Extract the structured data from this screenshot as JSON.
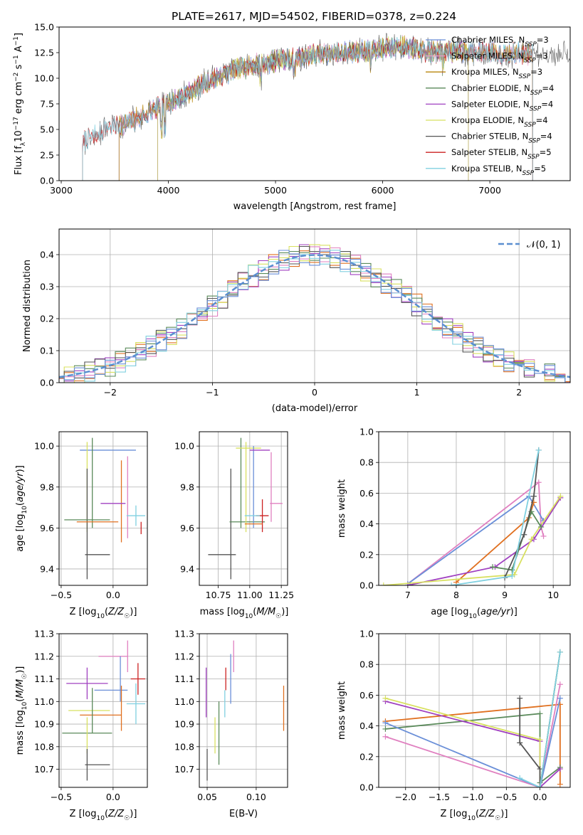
{
  "figure": {
    "title": "PLATE=2617, MJD=54502, FIBERID=0378, z=0.224"
  },
  "chart_data": [
    {
      "id": "spectrum",
      "type": "line",
      "xlabel": "wavelength [Angstrom, rest frame]",
      "ylabel": "Flux [f_λ10^-17 erg cm^-2 s^-1 A^-1]",
      "xlim": [
        2980,
        7750
      ],
      "ylim": [
        0,
        15
      ],
      "xticks": [
        3000,
        4000,
        5000,
        6000,
        7000
      ],
      "yticks": [
        0.0,
        2.5,
        5.0,
        7.5,
        10.0,
        12.5,
        15.0
      ],
      "legend_position": "top-right",
      "series": [
        {
          "name": "Chabrier MILES, N_SSP=3",
          "color": "#6a8fd8",
          "start": 3540,
          "end": 7400
        },
        {
          "name": "Salpeter MILES, N_SSP=3",
          "color": "#e5a0c8",
          "start": 3540,
          "end": 7400
        },
        {
          "name": "Kroupa MILES, N_SSP=3",
          "color": "#b8860b",
          "start": 3540,
          "end": 7400
        },
        {
          "name": "Chabrier ELODIE, N_SSP=4",
          "color": "#5a8a5a",
          "start": 3900,
          "end": 6800
        },
        {
          "name": "Salpeter ELODIE, N_SSP=4",
          "color": "#a040c0",
          "start": 3900,
          "end": 6800
        },
        {
          "name": "Kroupa ELODIE, N_SSP=4",
          "color": "#d8e060",
          "start": 3900,
          "end": 6800
        },
        {
          "name": "Chabrier STELIB, N_SSP=4",
          "color": "#555555",
          "start": 3200,
          "end": 7750
        },
        {
          "name": "Salpeter STELIB, N_SSP=5",
          "color": "#cc2222",
          "start": 3200,
          "end": 7400
        },
        {
          "name": "Kroupa STELIB, N_SSP=5",
          "color": "#80d0e0",
          "start": 3200,
          "end": 7400
        }
      ],
      "continuum_points": [
        [
          3200,
          3.9
        ],
        [
          3400,
          5.2
        ],
        [
          3600,
          5.5
        ],
        [
          3800,
          6.5
        ],
        [
          4000,
          7.6
        ],
        [
          4200,
          8.6
        ],
        [
          4400,
          9.8
        ],
        [
          4600,
          10.8
        ],
        [
          4800,
          11.3
        ],
        [
          5000,
          11.7
        ],
        [
          5200,
          12.0
        ],
        [
          5400,
          12.3
        ],
        [
          5600,
          12.5
        ],
        [
          5800,
          12.6
        ],
        [
          6000,
          12.9
        ],
        [
          6200,
          13.1
        ],
        [
          6400,
          12.6
        ],
        [
          6600,
          12.6
        ],
        [
          6800,
          12.6
        ],
        [
          7000,
          12.5
        ],
        [
          7200,
          12.4
        ],
        [
          7400,
          12.4
        ],
        [
          7750,
          12.2
        ]
      ]
    },
    {
      "id": "residuals",
      "type": "histogram",
      "xlabel": "(data-model)/error",
      "ylabel": "Normed distribution",
      "xlim": [
        -2.5,
        2.5
      ],
      "ylim": [
        0,
        0.48
      ],
      "xticks": [
        -2,
        -1,
        0,
        1,
        2
      ],
      "yticks": [
        0.0,
        0.1,
        0.2,
        0.3,
        0.4
      ],
      "grid": true,
      "legend": "𝒩(0, 1)",
      "legend_position": "top-right",
      "gaussian_color": "#5b8fd0"
    },
    {
      "id": "age-vs-Z",
      "type": "errorbar",
      "xlabel": "Z [log10(Z/Z☉)]",
      "ylabel": "age [log10(age/yr)]",
      "xlim": [
        -0.52,
        0.33
      ],
      "ylim": [
        9.32,
        10.07
      ],
      "xticks": [
        -0.5,
        0.0
      ],
      "yticks": [
        9.4,
        9.6,
        9.8,
        10.0
      ],
      "grid": true,
      "points": [
        {
          "color": "#6a8fd8",
          "x": -0.05,
          "xerr": 0.27,
          "y": 9.98,
          "yerr": 0.0
        },
        {
          "color": "#e080c0",
          "x": 0.14,
          "xerr": 0.0,
          "y": 9.75,
          "yerr": 0.2
        },
        {
          "color": "#e07020",
          "x": 0.08,
          "xerr": 0.0,
          "y": 9.73,
          "yerr": 0.2
        },
        {
          "color": "#5a8a5a",
          "x": -0.2,
          "xerr": 0.0,
          "y": 9.82,
          "yerr": 0.22
        },
        {
          "color": "#a040c0",
          "x": 0.0,
          "xerr": 0.12,
          "y": 9.72,
          "yerr": 0.0
        },
        {
          "color": "#d8e060",
          "x": -0.25,
          "xerr": 0.0,
          "y": 9.8,
          "yerr": 0.22
        },
        {
          "color": "#555555",
          "x": -0.25,
          "xerr": 0.0,
          "y": 9.62,
          "yerr": 0.27
        },
        {
          "color": "#555555",
          "x": -0.15,
          "xerr": 0.12,
          "y": 9.47,
          "yerr": 0.0
        },
        {
          "color": "#cc2222",
          "x": 0.27,
          "xerr": 0.0,
          "y": 9.6,
          "yerr": 0.03
        },
        {
          "color": "#80d0e0",
          "x": 0.22,
          "xerr": 0.09,
          "y": 9.66,
          "yerr": 0.05
        },
        {
          "color": "#5a8a5a",
          "x": -0.25,
          "xerr": 0.22,
          "y": 9.64,
          "yerr": 0.0
        },
        {
          "color": "#e07020",
          "x": -0.15,
          "xerr": 0.2,
          "y": 9.63,
          "yerr": 0.0
        }
      ]
    },
    {
      "id": "age-vs-mass",
      "type": "errorbar",
      "xlabel": "mass [log10(M/M☉)]",
      "ylabel": "",
      "xlim": [
        10.6,
        11.3
      ],
      "ylim": [
        9.32,
        10.07
      ],
      "xticks": [
        10.75,
        11.0,
        11.25
      ],
      "yticks": [
        9.4,
        9.6,
        9.8,
        10.0
      ],
      "grid": true,
      "points": [
        {
          "color": "#555555",
          "x": 10.78,
          "xerr": 0.11,
          "y": 9.47,
          "yerr": 0.0
        },
        {
          "color": "#555555",
          "x": 10.85,
          "xerr": 0.0,
          "y": 9.62,
          "yerr": 0.27
        },
        {
          "color": "#5a8a5a",
          "x": 10.98,
          "xerr": 0.14,
          "y": 9.63,
          "yerr": 0.0
        },
        {
          "color": "#5a8a5a",
          "x": 10.93,
          "xerr": 0.0,
          "y": 9.82,
          "yerr": 0.22
        },
        {
          "color": "#d8e060",
          "x": 10.97,
          "xerr": 0.0,
          "y": 9.8,
          "yerr": 0.22
        },
        {
          "color": "#d8e060",
          "x": 10.99,
          "xerr": 0.1,
          "y": 9.99,
          "yerr": 0.0
        },
        {
          "color": "#6a8fd8",
          "x": 11.03,
          "xerr": 0.0,
          "y": 9.8,
          "yerr": 0.2
        },
        {
          "color": "#a040c0",
          "x": 11.08,
          "xerr": 0.08,
          "y": 9.98,
          "yerr": 0.0
        },
        {
          "color": "#a040c0",
          "x": 11.03,
          "xerr": 0.0,
          "y": 9.72,
          "yerr": 0.0
        },
        {
          "color": "#e080c0",
          "x": 11.17,
          "xerr": 0.0,
          "y": 9.8,
          "yerr": 0.17
        },
        {
          "color": "#e080c0",
          "x": 11.21,
          "xerr": 0.05,
          "y": 9.72,
          "yerr": 0.0
        },
        {
          "color": "#cc2222",
          "x": 11.1,
          "xerr": 0.05,
          "y": 9.66,
          "yerr": 0.08
        },
        {
          "color": "#80d0e0",
          "x": 11.02,
          "xerr": 0.06,
          "y": 9.66,
          "yerr": 0.0
        },
        {
          "color": "#e07020",
          "x": 11.03,
          "xerr": 0.07,
          "y": 9.62,
          "yerr": 0.0
        }
      ]
    },
    {
      "id": "mass-weight-vs-age",
      "type": "line",
      "xlabel": "age [log10(age/yr)]",
      "ylabel": "mass weight",
      "xlim": [
        6.4,
        10.35
      ],
      "ylim": [
        0,
        1
      ],
      "xticks": [
        7,
        8,
        9,
        10
      ],
      "yticks": [
        0.0,
        0.2,
        0.4,
        0.6,
        0.8,
        1.0
      ],
      "grid": true,
      "series": [
        {
          "color": "#e080c0",
          "x": [
            7.0,
            9.7,
            9.75,
            9.8
          ],
          "y": [
            0.01,
            0.67,
            0.38,
            0.32
          ]
        },
        {
          "color": "#6a8fd8",
          "x": [
            7.0,
            9.5,
            9.8
          ],
          "y": [
            0.01,
            0.58,
            0.42
          ]
        },
        {
          "color": "#e07020",
          "x": [
            8.0,
            9.5,
            9.6
          ],
          "y": [
            0.02,
            0.44,
            0.54
          ]
        },
        {
          "color": "#a040c0",
          "x": [
            7.0,
            8.8,
            9.6,
            10.15
          ],
          "y": [
            0.0,
            0.12,
            0.3,
            0.57
          ]
        },
        {
          "color": "#d8e060",
          "x": [
            6.5,
            9.2,
            9.55,
            10.15
          ],
          "y": [
            0.0,
            0.07,
            0.3,
            0.58
          ]
        },
        {
          "color": "#5a8a5a",
          "x": [
            8.75,
            9.15,
            9.55,
            9.75
          ],
          "y": [
            0.12,
            0.1,
            0.48,
            0.38
          ]
        },
        {
          "color": "#555555",
          "x": [
            9.0,
            9.4,
            9.6,
            9.7
          ],
          "y": [
            0.05,
            0.33,
            0.58,
            0.88
          ]
        },
        {
          "color": "#80d0e0",
          "x": [
            7.9,
            9.15,
            9.7
          ],
          "y": [
            0.0,
            0.06,
            0.88
          ]
        }
      ]
    },
    {
      "id": "mass-vs-Z",
      "type": "errorbar",
      "xlabel": "Z [log10(Z/Z☉)]",
      "ylabel": "mass [log10(M/M☉)]",
      "xlim": [
        -0.52,
        0.33
      ],
      "ylim": [
        10.62,
        11.3
      ],
      "xticks": [
        -0.5,
        0.0
      ],
      "yticks": [
        10.7,
        10.8,
        10.9,
        11.0,
        11.1,
        11.2,
        11.3
      ],
      "grid": true,
      "points": [
        {
          "color": "#e080c0",
          "x": 0.0,
          "xerr": 0.14,
          "y": 11.2,
          "yerr": 0.0
        },
        {
          "color": "#e080c0",
          "x": 0.14,
          "xerr": 0.0,
          "y": 11.2,
          "yerr": 0.07
        },
        {
          "color": "#cc2222",
          "x": 0.24,
          "xerr": 0.07,
          "y": 11.1,
          "yerr": 0.07
        },
        {
          "color": "#a040c0",
          "x": -0.25,
          "xerr": 0.2,
          "y": 11.08,
          "yerr": 0.07
        },
        {
          "color": "#6a8fd8",
          "x": -0.02,
          "xerr": 0.16,
          "y": 11.05,
          "yerr": 0.0
        },
        {
          "color": "#6a8fd8",
          "x": 0.07,
          "xerr": 0.0,
          "y": 11.1,
          "yerr": 0.1
        },
        {
          "color": "#80d0e0",
          "x": 0.22,
          "xerr": 0.09,
          "y": 10.99,
          "yerr": 0.09
        },
        {
          "color": "#d8e060",
          "x": -0.23,
          "xerr": 0.2,
          "y": 10.96,
          "yerr": 0.0
        },
        {
          "color": "#e07020",
          "x": -0.12,
          "xerr": 0.2,
          "y": 10.94,
          "yerr": 0.0
        },
        {
          "color": "#e07020",
          "x": 0.08,
          "xerr": 0.0,
          "y": 10.97,
          "yerr": 0.1
        },
        {
          "color": "#5a8a5a",
          "x": -0.25,
          "xerr": 0.24,
          "y": 10.86,
          "yerr": 0.0
        },
        {
          "color": "#5a8a5a",
          "x": -0.2,
          "xerr": 0.0,
          "y": 10.96,
          "yerr": 0.1
        },
        {
          "color": "#d8e060",
          "x": -0.25,
          "xerr": 0.0,
          "y": 10.85,
          "yerr": 0.08
        },
        {
          "color": "#555555",
          "x": -0.25,
          "xerr": 0.0,
          "y": 10.72,
          "yerr": 0.07
        },
        {
          "color": "#555555",
          "x": -0.15,
          "xerr": 0.12,
          "y": 10.72,
          "yerr": 0.0
        }
      ]
    },
    {
      "id": "mass-vs-EBV",
      "type": "errorbar",
      "xlabel": "E(B-V)",
      "ylabel": "",
      "xlim": [
        0.042,
        0.132
      ],
      "ylim": [
        10.62,
        11.3
      ],
      "xticks": [
        0.05,
        0.1
      ],
      "yticks": [
        10.7,
        10.8,
        10.9,
        11.0,
        11.1,
        11.2,
        11.3
      ],
      "grid": true,
      "points": [
        {
          "color": "#555555",
          "x": 0.05,
          "xerr": 0.0,
          "y": 10.72,
          "yerr": 0.07
        },
        {
          "color": "#a040c0",
          "x": 0.049,
          "xerr": 0.0,
          "y": 11.04,
          "yerr": 0.11
        },
        {
          "color": "#d8e060",
          "x": 0.058,
          "xerr": 0.0,
          "y": 10.85,
          "yerr": 0.08
        },
        {
          "color": "#5a8a5a",
          "x": 0.062,
          "xerr": 0.0,
          "y": 10.86,
          "yerr": 0.14
        },
        {
          "color": "#80d0e0",
          "x": 0.068,
          "xerr": 0.0,
          "y": 10.99,
          "yerr": 0.06
        },
        {
          "color": "#cc2222",
          "x": 0.069,
          "xerr": 0.0,
          "y": 11.1,
          "yerr": 0.05
        },
        {
          "color": "#6a8fd8",
          "x": 0.074,
          "xerr": 0.0,
          "y": 11.1,
          "yerr": 0.11
        },
        {
          "color": "#e080c0",
          "x": 0.077,
          "xerr": 0.0,
          "y": 11.2,
          "yerr": 0.07
        },
        {
          "color": "#e07020",
          "x": 0.128,
          "xerr": 0.0,
          "y": 10.97,
          "yerr": 0.1
        }
      ]
    },
    {
      "id": "mass-weight-vs-Z",
      "type": "line",
      "xlabel": "Z [log10(Z/Z☉)]",
      "ylabel": "mass weight",
      "xlim": [
        -2.4,
        0.45
      ],
      "ylim": [
        0,
        1
      ],
      "xticks": [
        -2.0,
        -1.5,
        -1.0,
        -0.5,
        0.0
      ],
      "yticks": [
        0.0,
        0.2,
        0.4,
        0.6,
        0.8,
        1.0
      ],
      "grid": true,
      "series": [
        {
          "color": "#e07020",
          "x": [
            -2.3,
            0.3,
            0.3
          ],
          "y": [
            0.43,
            0.54,
            0.02
          ]
        },
        {
          "color": "#5a8a5a",
          "x": [
            -2.3,
            0.0,
            0.0,
            0.3
          ],
          "y": [
            0.38,
            0.48,
            0.03,
            0.13
          ]
        },
        {
          "color": "#a040c0",
          "x": [
            -2.3,
            0.0,
            0.0,
            0.3
          ],
          "y": [
            0.56,
            0.3,
            0.0,
            0.12
          ]
        },
        {
          "color": "#d8e060",
          "x": [
            -2.3,
            0.0,
            0.0,
            0.3
          ],
          "y": [
            0.58,
            0.31,
            0.0,
            0.88
          ]
        },
        {
          "color": "#e080c0",
          "x": [
            -2.3,
            0.0,
            0.3
          ],
          "y": [
            0.33,
            0.0,
            0.67
          ]
        },
        {
          "color": "#6a8fd8",
          "x": [
            -2.3,
            0.0,
            0.3
          ],
          "y": [
            0.42,
            0.0,
            0.58
          ]
        },
        {
          "color": "#555555",
          "x": [
            -0.3,
            -0.3,
            0.0,
            0.0,
            0.3
          ],
          "y": [
            0.58,
            0.29,
            0.12,
            0.0,
            0.88
          ]
        },
        {
          "color": "#80d0e0",
          "x": [
            -0.3,
            0.0,
            0.3
          ],
          "y": [
            0.06,
            0.0,
            0.88
          ]
        }
      ]
    }
  ]
}
